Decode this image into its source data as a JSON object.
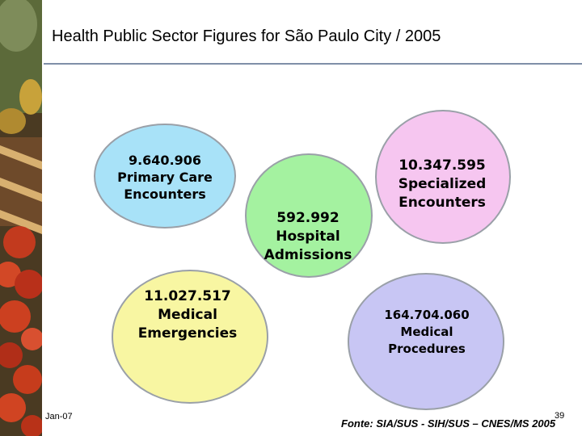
{
  "slide": {
    "title": "Health Public Sector Figures for São Paulo City / 2005",
    "footer_date": "Jan-07",
    "page_number": "39",
    "source": "Fonte: SIA/SUS - SIH/SUS – CNES/MS 2005"
  },
  "bubbles": [
    {
      "value": "9.640.906",
      "line1": "Primary Care",
      "line2": "Encounters",
      "color": "#a8e2f8"
    },
    {
      "value": "592.992",
      "line1": "Hospital",
      "line2": "Admissions",
      "color": "#a4f2a0"
    },
    {
      "value": "10.347.595",
      "line1": "Specialized",
      "line2": "Encounters",
      "color": "#f6c6f0"
    },
    {
      "value": "11.027.517",
      "line1": "Medical",
      "line2": "Emergencies",
      "color": "#f8f6a2"
    },
    {
      "value": "164.704.060",
      "line1": "Medical",
      "line2": "Procedures",
      "color": "#c8c6f4"
    }
  ],
  "colors": {
    "title_rule": "#7f8fa8",
    "bubble_border": "#9aa0a8"
  }
}
